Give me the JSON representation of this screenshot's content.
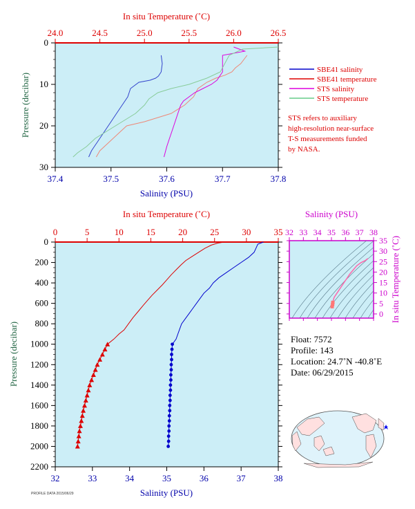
{
  "chart_data": [
    {
      "type": "line",
      "panel": "top-profile",
      "xlabel": "Salinity (PSU)",
      "x2label": "In situ Temperature (˚C)",
      "ylabel": "Pressure (decibar)",
      "xlim": [
        37.4,
        37.8
      ],
      "x2lim": [
        24.0,
        26.5
      ],
      "ylim": [
        30,
        0
      ],
      "x_ticks": [
        "37.4",
        "37.5",
        "37.6",
        "37.7",
        "37.8"
      ],
      "x2_ticks": [
        "24.0",
        "24.5",
        "25.0",
        "25.5",
        "26.0",
        "26.5"
      ],
      "y_ticks": [
        "0",
        "10",
        "20",
        "30"
      ],
      "legend": [
        {
          "name": "SBE41 salinity",
          "color": "#0000cc"
        },
        {
          "name": "SBE41 temperature",
          "color": "#dd0000"
        },
        {
          "name": "STS salinity",
          "color": "#dd00dd"
        },
        {
          "name": "STS temperature",
          "color": "#66cc88"
        }
      ],
      "note": [
        "STS refers to auxiliary",
        "high-resolution near-surface",
        "T-S measurements funded",
        "by NASA."
      ],
      "series": [
        {
          "name": "SBE41 salinity",
          "axis": "salinity",
          "color": "#3344cc",
          "points": [
            [
              37.59,
              3
            ],
            [
              37.592,
              5
            ],
            [
              37.59,
              7
            ],
            [
              37.585,
              8
            ],
            [
              37.58,
              8.5
            ],
            [
              37.57,
              9
            ],
            [
              37.55,
              9.5
            ],
            [
              37.535,
              11
            ],
            [
              37.53,
              13
            ],
            [
              37.52,
              15
            ],
            [
              37.51,
              17
            ],
            [
              37.5,
              19
            ],
            [
              37.49,
              21
            ],
            [
              37.48,
              23
            ],
            [
              37.475,
              24
            ],
            [
              37.47,
              25
            ],
            [
              37.465,
              26
            ],
            [
              37.46,
              27.5
            ]
          ]
        },
        {
          "name": "SBE41 temperature",
          "axis": "temperature",
          "color": "#ee8877",
          "points": [
            [
              26.15,
              3
            ],
            [
              26.08,
              5
            ],
            [
              26.02,
              6
            ],
            [
              25.98,
              7
            ],
            [
              25.9,
              7.8
            ],
            [
              25.8,
              8.5
            ],
            [
              25.7,
              9.5
            ],
            [
              25.6,
              11
            ],
            [
              25.55,
              13
            ],
            [
              25.45,
              15
            ],
            [
              25.3,
              17
            ],
            [
              25.0,
              19
            ],
            [
              24.8,
              20
            ],
            [
              24.7,
              22
            ],
            [
              24.6,
              24
            ],
            [
              24.5,
              26
            ],
            [
              24.46,
              27.5
            ]
          ]
        },
        {
          "name": "STS salinity",
          "axis": "salinity",
          "color": "#dd00dd",
          "points": [
            [
              37.72,
              1
            ],
            [
              37.74,
              2
            ],
            [
              37.7,
              3
            ],
            [
              37.7,
              5
            ],
            [
              37.7,
              7
            ],
            [
              37.69,
              9
            ],
            [
              37.68,
              10
            ],
            [
              37.665,
              11
            ],
            [
              37.65,
              12
            ],
            [
              37.64,
              13
            ],
            [
              37.63,
              14
            ],
            [
              37.625,
              15
            ],
            [
              37.62,
              17
            ],
            [
              37.615,
              19
            ],
            [
              37.61,
              21
            ],
            [
              37.605,
              23
            ],
            [
              37.6,
              25
            ],
            [
              37.595,
              27.5
            ]
          ]
        },
        {
          "name": "STS temperature",
          "axis": "temperature",
          "color": "#88cc99",
          "points": [
            [
              26.5,
              1
            ],
            [
              26.1,
              1.5
            ],
            [
              25.95,
              3
            ],
            [
              25.9,
              5
            ],
            [
              25.85,
              7
            ],
            [
              25.7,
              8.5
            ],
            [
              25.5,
              10
            ],
            [
              25.3,
              11
            ],
            [
              25.15,
              12
            ],
            [
              25.05,
              13.5
            ],
            [
              25.0,
              15
            ],
            [
              24.9,
              17
            ],
            [
              24.75,
              19
            ],
            [
              24.6,
              21
            ],
            [
              24.45,
              23
            ],
            [
              24.35,
              25
            ],
            [
              24.25,
              26.5
            ],
            [
              24.2,
              27.5
            ]
          ]
        }
      ]
    },
    {
      "type": "line",
      "panel": "bottom-profile",
      "xlabel": "Salinity (PSU)",
      "x2label": "In situ Temperature (˚C)",
      "ylabel": "Pressure (decibar)",
      "xlim": [
        32,
        38
      ],
      "x2lim": [
        0,
        35
      ],
      "ylim": [
        2200,
        0
      ],
      "x_ticks": [
        "32",
        "33",
        "34",
        "35",
        "36",
        "37",
        "38"
      ],
      "x2_ticks": [
        "0",
        "5",
        "10",
        "15",
        "20",
        "25",
        "30",
        "35"
      ],
      "y_ticks": [
        "0",
        "200",
        "400",
        "600",
        "800",
        "1000",
        "1200",
        "1400",
        "1600",
        "1800",
        "2000",
        "2200"
      ],
      "series": [
        {
          "name": "Salinity",
          "axis": "salinity",
          "color": "#0000cc",
          "points": [
            [
              37.6,
              0
            ],
            [
              37.45,
              20
            ],
            [
              37.4,
              60
            ],
            [
              37.35,
              100
            ],
            [
              37.2,
              150
            ],
            [
              37.0,
              200
            ],
            [
              36.8,
              250
            ],
            [
              36.6,
              300
            ],
            [
              36.4,
              350
            ],
            [
              36.25,
              400
            ],
            [
              36.15,
              450
            ],
            [
              36.0,
              500
            ],
            [
              35.9,
              550
            ],
            [
              35.8,
              600
            ],
            [
              35.7,
              650
            ],
            [
              35.6,
              700
            ],
            [
              35.5,
              750
            ],
            [
              35.4,
              800
            ],
            [
              35.35,
              850
            ],
            [
              35.3,
              900
            ],
            [
              35.25,
              950
            ],
            [
              35.15,
              1000
            ]
          ]
        },
        {
          "name": "Salinity (discrete)",
          "axis": "salinity",
          "color": "#0000cc",
          "points": [
            [
              35.15,
              1000
            ],
            [
              35.14,
              1050
            ],
            [
              35.13,
              1100
            ],
            [
              35.13,
              1150
            ],
            [
              35.12,
              1200
            ],
            [
              35.12,
              1250
            ],
            [
              35.11,
              1300
            ],
            [
              35.11,
              1350
            ],
            [
              35.1,
              1400
            ],
            [
              35.1,
              1450
            ],
            [
              35.09,
              1500
            ],
            [
              35.09,
              1550
            ],
            [
              35.08,
              1600
            ],
            [
              35.08,
              1650
            ],
            [
              35.07,
              1700
            ],
            [
              35.07,
              1750
            ],
            [
              35.06,
              1800
            ],
            [
              35.06,
              1850
            ],
            [
              35.05,
              1900
            ],
            [
              35.05,
              1950
            ],
            [
              35.04,
              2000
            ]
          ]
        },
        {
          "name": "Temperature",
          "axis": "temperature",
          "color": "#dd0000",
          "points": [
            [
              26.5,
              0
            ],
            [
              25.5,
              10
            ],
            [
              24.5,
              30
            ],
            [
              23.5,
              60
            ],
            [
              22.5,
              100
            ],
            [
              21.5,
              140
            ],
            [
              20.5,
              180
            ],
            [
              19.8,
              220
            ],
            [
              19.0,
              270
            ],
            [
              18.2,
              320
            ],
            [
              17.5,
              370
            ],
            [
              16.8,
              420
            ],
            [
              16.0,
              470
            ],
            [
              15.2,
              520
            ],
            [
              14.5,
              570
            ],
            [
              13.8,
              620
            ],
            [
              13.0,
              680
            ],
            [
              12.2,
              740
            ],
            [
              11.5,
              800
            ],
            [
              10.8,
              860
            ],
            [
              10.0,
              900
            ],
            [
              9.2,
              950
            ],
            [
              8.2,
              1000
            ]
          ]
        },
        {
          "name": "Temperature (discrete)",
          "axis": "temperature",
          "color": "#dd0000",
          "points": [
            [
              8.2,
              1000
            ],
            [
              7.8,
              1050
            ],
            [
              7.4,
              1100
            ],
            [
              7.0,
              1150
            ],
            [
              6.6,
              1200
            ],
            [
              6.3,
              1250
            ],
            [
              6.0,
              1300
            ],
            [
              5.7,
              1350
            ],
            [
              5.4,
              1400
            ],
            [
              5.2,
              1450
            ],
            [
              5.0,
              1500
            ],
            [
              4.8,
              1550
            ],
            [
              4.6,
              1600
            ],
            [
              4.4,
              1650
            ],
            [
              4.25,
              1700
            ],
            [
              4.1,
              1750
            ],
            [
              3.95,
              1800
            ],
            [
              3.8,
              1850
            ],
            [
              3.7,
              1900
            ],
            [
              3.6,
              1950
            ],
            [
              3.5,
              2000
            ]
          ]
        }
      ]
    },
    {
      "type": "scatter",
      "panel": "ts-diagram",
      "xlabel": "Salinity (PSU)",
      "ylabel": "In situ Temperature (˚C)",
      "xlim": [
        32,
        38
      ],
      "ylim": [
        -2,
        35
      ],
      "x_ticks": [
        "32",
        "33",
        "34",
        "35",
        "36",
        "37",
        "38"
      ],
      "y_ticks": [
        "0",
        "5",
        "10",
        "15",
        "20",
        "25",
        "30",
        "35"
      ],
      "series": [
        {
          "name": "T-S",
          "color": "#ff66aa",
          "points": [
            [
              35.05,
              3.5
            ],
            [
              35.08,
              4.5
            ],
            [
              35.1,
              5.5
            ],
            [
              35.15,
              7
            ],
            [
              35.2,
              8
            ],
            [
              35.35,
              9.5
            ],
            [
              35.5,
              11
            ],
            [
              35.7,
              13
            ],
            [
              35.9,
              15
            ],
            [
              36.1,
              17
            ],
            [
              36.3,
              19
            ],
            [
              36.55,
              21
            ],
            [
              36.8,
              23
            ],
            [
              37.1,
              24.5
            ],
            [
              37.4,
              25.5
            ],
            [
              37.6,
              26.5
            ]
          ]
        }
      ]
    }
  ],
  "float_info": {
    "float": "Float:  7572",
    "profile": "Profile:  143",
    "location": "Location:  24.7˚N  -40.8˚E",
    "date": "Date:  06/29/2015"
  },
  "footer": "PROFILE DATA 2015/06/29",
  "colors": {
    "plot_bg": "#cceef7",
    "temperature": "#dd0000",
    "salinity": "#0000cc",
    "ts": "#cc00cc"
  }
}
